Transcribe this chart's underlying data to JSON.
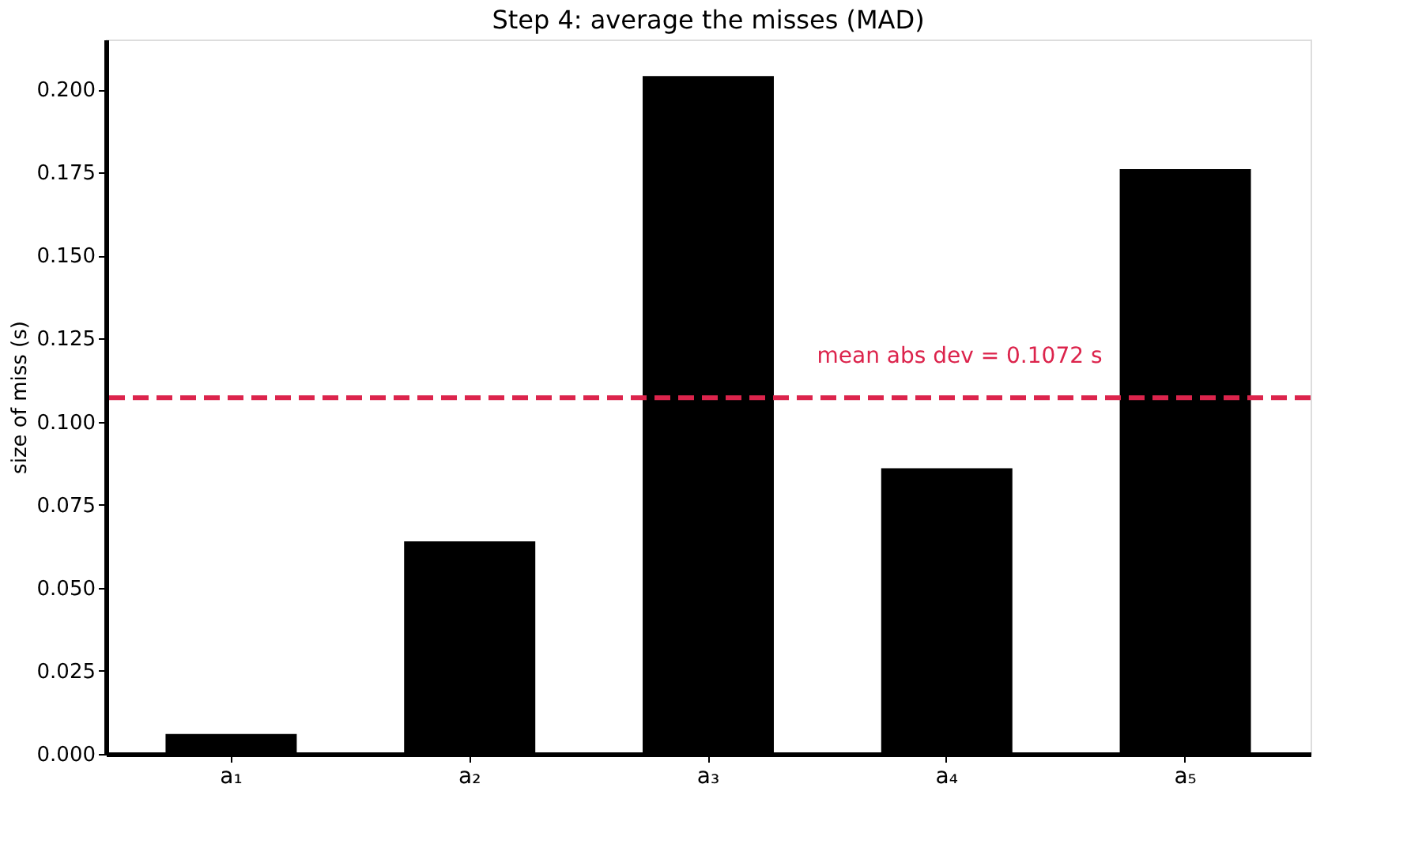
{
  "chart_data": {
    "type": "bar",
    "title": "Step 4: average the misses (MAD)",
    "ylabel": "size of miss  (s)",
    "categories": [
      "a₁",
      "a₂",
      "a₃",
      "a₄",
      "a₅"
    ],
    "values": [
      0.006,
      0.064,
      0.204,
      0.086,
      0.176
    ],
    "color": "#000000",
    "ylim": [
      0,
      0.215
    ],
    "yticks": [
      {
        "value": 0,
        "label": "0.000"
      },
      {
        "value": 0.025,
        "label": "0.025"
      },
      {
        "value": 0.05,
        "label": "0.050"
      },
      {
        "value": 0.075,
        "label": "0.075"
      },
      {
        "value": 0.1,
        "label": "0.100"
      },
      {
        "value": 0.125,
        "label": "0.125"
      },
      {
        "value": 0.15,
        "label": "0.150"
      },
      {
        "value": 0.175,
        "label": "0.175"
      },
      {
        "value": 0.2,
        "label": "0.200"
      }
    ],
    "grid": false,
    "ref_lines": [
      {
        "axis": "y",
        "value": 0.1072,
        "label": "mean abs dev = 0.1072 s",
        "color": "#dc244c",
        "line_style": "dashed"
      }
    ]
  }
}
